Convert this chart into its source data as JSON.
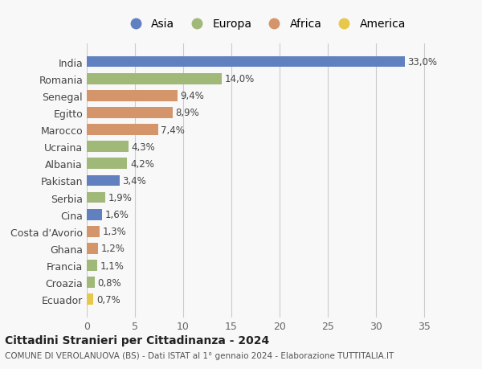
{
  "categories": [
    "India",
    "Romania",
    "Senegal",
    "Egitto",
    "Marocco",
    "Ucraina",
    "Albania",
    "Pakistan",
    "Serbia",
    "Cina",
    "Costa d'Avorio",
    "Ghana",
    "Francia",
    "Croazia",
    "Ecuador"
  ],
  "values": [
    33.0,
    14.0,
    9.4,
    8.9,
    7.4,
    4.3,
    4.2,
    3.4,
    1.9,
    1.6,
    1.3,
    1.2,
    1.1,
    0.8,
    0.7
  ],
  "labels": [
    "33,0%",
    "14,0%",
    "9,4%",
    "8,9%",
    "7,4%",
    "4,3%",
    "4,2%",
    "3,4%",
    "1,9%",
    "1,6%",
    "1,3%",
    "1,2%",
    "1,1%",
    "0,8%",
    "0,7%"
  ],
  "colors": [
    "#6080c0",
    "#a0b878",
    "#d4956a",
    "#d4956a",
    "#d4956a",
    "#a0b878",
    "#a0b878",
    "#6080c0",
    "#a0b878",
    "#6080c0",
    "#d4956a",
    "#d4956a",
    "#a0b878",
    "#a0b878",
    "#e8c84a"
  ],
  "continents": [
    "Asia",
    "Europa",
    "Africa",
    "Africa",
    "Africa",
    "Europa",
    "Europa",
    "Asia",
    "Europa",
    "Asia",
    "Africa",
    "Africa",
    "Europa",
    "Europa",
    "America"
  ],
  "legend_labels": [
    "Asia",
    "Europa",
    "Africa",
    "America"
  ],
  "legend_colors": [
    "#6080c0",
    "#a0b878",
    "#d4956a",
    "#e8c84a"
  ],
  "title": "Cittadini Stranieri per Cittadinanza - 2024",
  "subtitle": "COMUNE DI VEROLANUOVA (BS) - Dati ISTAT al 1° gennaio 2024 - Elaborazione TUTTITALIA.IT",
  "xlim": [
    0,
    37
  ],
  "xticks": [
    0,
    5,
    10,
    15,
    20,
    25,
    30,
    35
  ],
  "bg_color": "#f8f8f8",
  "bar_height": 0.65,
  "grid_color": "#cccccc"
}
